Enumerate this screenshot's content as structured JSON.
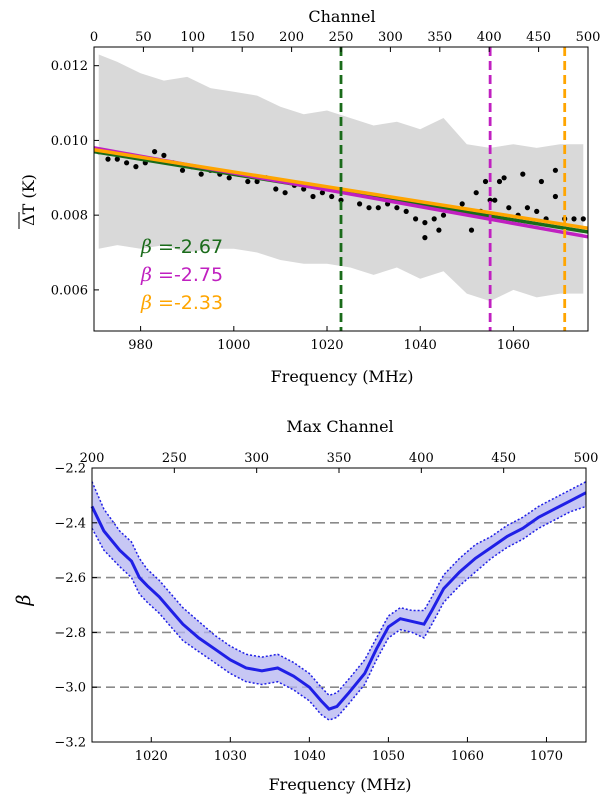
{
  "chart_data": [
    {
      "type": "scatter",
      "xlabel": "Frequency (MHz)",
      "ylabel": "ΔT (K)",
      "top_xlabel": "Channel",
      "xlim": [
        970,
        1076
      ],
      "ylim": [
        0.0049,
        0.0125
      ],
      "channel_lim": [
        0,
        500
      ],
      "x_ticks": [
        980,
        1000,
        1020,
        1040,
        1060
      ],
      "y_ticks": [
        0.006,
        0.008,
        0.01,
        0.012
      ],
      "y_tick_labels": [
        "0.006",
        "0.008",
        "0.010",
        "0.012"
      ],
      "channel_ticks": [
        0,
        50,
        100,
        150,
        200,
        250,
        300,
        350,
        400,
        450,
        500
      ],
      "grid": false,
      "error_band": {
        "color": "#d9d9d9",
        "x": [
          971,
          975,
          980,
          985,
          990,
          995,
          1000,
          1005,
          1010,
          1015,
          1020,
          1025,
          1030,
          1035,
          1040,
          1045,
          1050,
          1055,
          1060,
          1065,
          1070,
          1075
        ],
        "upper": [
          0.0123,
          0.0121,
          0.0118,
          0.0116,
          0.0117,
          0.0114,
          0.0113,
          0.0112,
          0.0109,
          0.0107,
          0.0108,
          0.0106,
          0.0104,
          0.0105,
          0.0103,
          0.0106,
          0.0099,
          0.0098,
          0.0099,
          0.0098,
          0.0099,
          0.0099
        ],
        "lower": [
          0.0071,
          0.0072,
          0.0071,
          0.0072,
          0.007,
          0.0071,
          0.0071,
          0.007,
          0.0068,
          0.0067,
          0.0067,
          0.0066,
          0.0064,
          0.0066,
          0.0063,
          0.0065,
          0.0059,
          0.0057,
          0.006,
          0.0058,
          0.0059,
          0.0059
        ]
      },
      "points": {
        "color": "#000000",
        "x": [
          971,
          973,
          975,
          977,
          979,
          981,
          983,
          985,
          987,
          989,
          991,
          993,
          995,
          997,
          999,
          1001,
          1003,
          1005,
          1007,
          1009,
          1011,
          1013,
          1015,
          1017,
          1019,
          1021,
          1023,
          1025,
          1027,
          1029,
          1031,
          1033,
          1035,
          1037,
          1039,
          1041,
          1043,
          1045,
          1047,
          1049,
          1051,
          1053,
          1055,
          1057,
          1059,
          1061,
          1063,
          1065,
          1067,
          1069,
          1071,
          1073,
          1075
        ],
        "y": [
          0.0097,
          0.0095,
          0.0095,
          0.0094,
          0.0093,
          0.0094,
          0.0097,
          0.0096,
          0.0094,
          0.0092,
          0.0093,
          0.0091,
          0.0092,
          0.0091,
          0.009,
          0.0091,
          0.0089,
          0.0089,
          0.009,
          0.0087,
          0.0086,
          0.0088,
          0.0087,
          0.0085,
          0.0086,
          0.0085,
          0.0084,
          0.0086,
          0.0083,
          0.0082,
          0.0082,
          0.0083,
          0.0082,
          0.0081,
          0.0079,
          0.0078,
          0.0079,
          0.008,
          0.0081,
          0.0083,
          0.0076,
          0.0081,
          0.0084,
          0.0089,
          0.0082,
          0.008,
          0.0082,
          0.0081,
          0.0079,
          0.0085,
          0.0079,
          0.0079,
          0.0079
        ]
      },
      "outliers": {
        "x": [
          1052,
          1054,
          1056,
          1058,
          1062,
          1066,
          1069,
          1041,
          1044
        ],
        "y": [
          0.0086,
          0.0089,
          0.0084,
          0.009,
          0.0091,
          0.0089,
          0.0092,
          0.0074,
          0.0076
        ]
      },
      "fit_lines": [
        {
          "color": "#1a6b1a",
          "x": [
            970,
            1076
          ],
          "y": [
            0.0097,
            0.00755
          ]
        },
        {
          "color": "#c020c0",
          "x": [
            970,
            1076
          ],
          "y": [
            0.0098,
            0.00742
          ]
        },
        {
          "color": "#ffa500",
          "x": [
            970,
            1076
          ],
          "y": [
            0.00975,
            0.00765
          ]
        }
      ],
      "vlines": [
        {
          "x": 1023,
          "color": "#1a6b1a"
        },
        {
          "x": 1055,
          "color": "#c020c0"
        },
        {
          "x": 1071,
          "color": "#ffa500"
        }
      ],
      "annotations": [
        {
          "symbol": "β",
          "text": " =-2.67",
          "color": "#1a6b1a"
        },
        {
          "symbol": "β",
          "text": " =-2.75",
          "color": "#c020c0"
        },
        {
          "symbol": "β",
          "text": " =-2.33",
          "color": "#ffa500"
        }
      ]
    },
    {
      "type": "line",
      "xlabel": "Frequency (MHz)",
      "ylabel": "β",
      "top_xlabel": "Max Channel",
      "xlim": [
        1012.5,
        1075
      ],
      "ylim": [
        -3.2,
        -2.2
      ],
      "channel_lim": [
        200,
        500
      ],
      "x_ticks": [
        1020,
        1030,
        1040,
        1050,
        1060,
        1070
      ],
      "y_ticks": [
        -2.2,
        -2.4,
        -2.6,
        -2.8,
        -3.0,
        -3.2
      ],
      "y_tick_labels": [
        "−2.2",
        "−2.4",
        "−2.6",
        "−2.8",
        "−3.0",
        "−3.2"
      ],
      "channel_ticks": [
        200,
        250,
        300,
        350,
        400,
        450,
        500
      ],
      "grid": false,
      "hlines": [
        -2.4,
        -2.6,
        -2.8,
        -3.0
      ],
      "line_color": "#1f1fe6",
      "band_color": "#b4b4f0",
      "x": [
        1012.5,
        1014,
        1016,
        1017.5,
        1018.5,
        1019.5,
        1021,
        1022.5,
        1024,
        1026,
        1028,
        1030,
        1032,
        1034,
        1036,
        1038,
        1040,
        1041.5,
        1042.5,
        1043.5,
        1045,
        1047,
        1048.5,
        1050,
        1051.5,
        1053,
        1054.5,
        1055.5,
        1057,
        1059,
        1061,
        1063,
        1065,
        1067,
        1069,
        1071,
        1073,
        1075
      ],
      "y": [
        -2.34,
        -2.43,
        -2.5,
        -2.54,
        -2.6,
        -2.63,
        -2.67,
        -2.72,
        -2.77,
        -2.82,
        -2.86,
        -2.9,
        -2.93,
        -2.94,
        -2.93,
        -2.96,
        -3.0,
        -3.05,
        -3.08,
        -3.07,
        -3.02,
        -2.95,
        -2.86,
        -2.78,
        -2.75,
        -2.76,
        -2.77,
        -2.72,
        -2.64,
        -2.58,
        -2.53,
        -2.49,
        -2.45,
        -2.42,
        -2.38,
        -2.35,
        -2.32,
        -2.29
      ],
      "lower": [
        -2.42,
        -2.5,
        -2.56,
        -2.6,
        -2.66,
        -2.69,
        -2.73,
        -2.78,
        -2.83,
        -2.87,
        -2.91,
        -2.95,
        -2.98,
        -2.99,
        -2.98,
        -3.01,
        -3.05,
        -3.1,
        -3.12,
        -3.11,
        -3.06,
        -2.99,
        -2.9,
        -2.82,
        -2.79,
        -2.8,
        -2.82,
        -2.77,
        -2.69,
        -2.63,
        -2.58,
        -2.53,
        -2.49,
        -2.46,
        -2.42,
        -2.39,
        -2.36,
        -2.34
      ],
      "upper": [
        -2.25,
        -2.35,
        -2.43,
        -2.47,
        -2.53,
        -2.57,
        -2.61,
        -2.66,
        -2.71,
        -2.76,
        -2.81,
        -2.85,
        -2.88,
        -2.89,
        -2.88,
        -2.91,
        -2.95,
        -3.0,
        -3.03,
        -3.02,
        -2.97,
        -2.9,
        -2.82,
        -2.74,
        -2.71,
        -2.72,
        -2.72,
        -2.67,
        -2.59,
        -2.53,
        -2.48,
        -2.45,
        -2.41,
        -2.38,
        -2.34,
        -2.31,
        -2.28,
        -2.25
      ]
    }
  ]
}
